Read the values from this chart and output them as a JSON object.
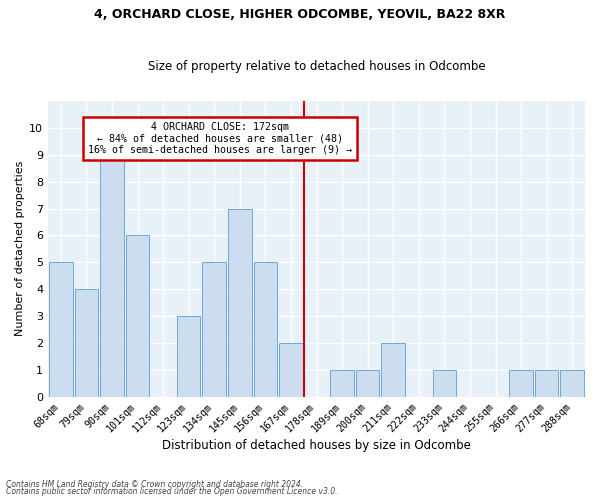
{
  "title1": "4, ORCHARD CLOSE, HIGHER ODCOMBE, YEOVIL, BA22 8XR",
  "title2": "Size of property relative to detached houses in Odcombe",
  "xlabel": "Distribution of detached houses by size in Odcombe",
  "ylabel": "Number of detached properties",
  "categories": [
    "68sqm",
    "79sqm",
    "90sqm",
    "101sqm",
    "112sqm",
    "123sqm",
    "134sqm",
    "145sqm",
    "156sqm",
    "167sqm",
    "178sqm",
    "189sqm",
    "200sqm",
    "211sqm",
    "222sqm",
    "233sqm",
    "244sqm",
    "255sqm",
    "266sqm",
    "277sqm",
    "288sqm"
  ],
  "values": [
    5,
    4,
    9,
    6,
    0,
    3,
    5,
    7,
    5,
    2,
    0,
    1,
    1,
    2,
    0,
    1,
    0,
    0,
    1,
    1,
    1
  ],
  "bar_color": "#ccddf0",
  "bar_edge_color": "#6aaad4",
  "vline_x_label": "167sqm",
  "vline_color": "#cc0000",
  "annotation_title": "4 ORCHARD CLOSE: 172sqm",
  "annotation_line1": "← 84% of detached houses are smaller (48)",
  "annotation_line2": "16% of semi-detached houses are larger (9) →",
  "annotation_box_color": "#cc0000",
  "ylim": [
    0,
    11
  ],
  "yticks": [
    0,
    1,
    2,
    3,
    4,
    5,
    6,
    7,
    8,
    9,
    10,
    11
  ],
  "background_color": "#e8f0f8",
  "grid_color": "#ffffff",
  "footer1": "Contains HM Land Registry data © Crown copyright and database right 2024.",
  "footer2": "Contains public sector information licensed under the Open Government Licence v3.0."
}
